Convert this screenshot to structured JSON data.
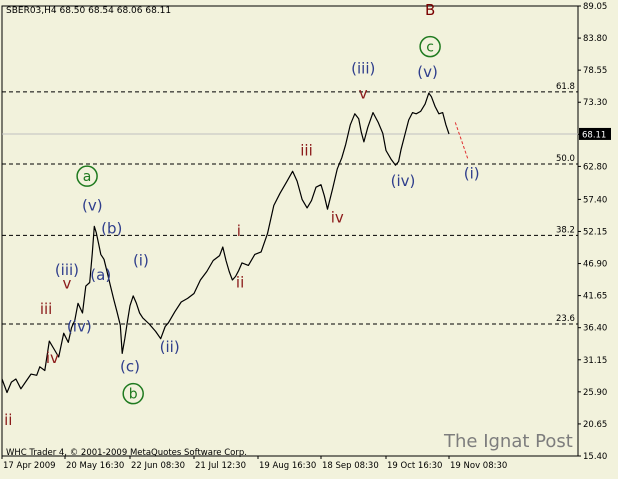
{
  "header": {
    "symbol_info": "SBER03,H4  68.50 68.54 68.06 68.11"
  },
  "footer": {
    "copyright": "WHC Trader 4, © 2001-2009 MetaQuotes Software Corp.",
    "watermark": "The Ignat Post"
  },
  "colors": {
    "background": "#f2f2dc",
    "price_line": "#000000",
    "wave_red": "#8b1a1a",
    "wave_blue": "#2f3e8c",
    "circle_green": "#1f7a1f",
    "projection": "#e03030",
    "current_price_line": "#c0c0c0"
  },
  "chart_data": {
    "type": "line",
    "title": "SBER03,H4",
    "ylim": [
      15.4,
      89.05
    ],
    "y_ticks": [
      "89.05",
      "83.80",
      "78.55",
      "73.30",
      "68.05",
      "62.80",
      "57.40",
      "52.15",
      "46.90",
      "41.65",
      "36.40",
      "31.15",
      "25.90",
      "20.65",
      "15.40"
    ],
    "x_ticks": [
      "17 Apr 2009",
      "20 May 16:30",
      "22 Jun 08:30",
      "21 Jul 12:30",
      "19 Aug 16:30",
      "18 Sep 08:30",
      "19 Oct 16:30",
      "19 Nov 08:30"
    ],
    "current_price": "68.11",
    "fib_levels": [
      {
        "label": "61.8",
        "value": 75.0
      },
      {
        "label": "50.0",
        "value": 63.2
      },
      {
        "label": "38.2",
        "value": 51.5
      },
      {
        "label": "23.6",
        "value": 37.0
      }
    ],
    "price_points": [
      [
        0.0,
        28.0
      ],
      [
        0.08,
        25.8
      ],
      [
        0.15,
        27.5
      ],
      [
        0.22,
        28.0
      ],
      [
        0.3,
        26.4
      ],
      [
        0.38,
        27.6
      ],
      [
        0.46,
        28.8
      ],
      [
        0.55,
        28.6
      ],
      [
        0.6,
        30.0
      ],
      [
        0.68,
        29.4
      ],
      [
        0.75,
        34.2
      ],
      [
        0.82,
        33.0
      ],
      [
        0.9,
        31.6
      ],
      [
        0.98,
        35.5
      ],
      [
        1.05,
        34.0
      ],
      [
        1.1,
        36.4
      ],
      [
        1.15,
        37.6
      ],
      [
        1.2,
        40.4
      ],
      [
        1.27,
        38.8
      ],
      [
        1.32,
        43.2
      ],
      [
        1.38,
        43.8
      ],
      [
        1.42,
        48.6
      ],
      [
        1.45,
        53.0
      ],
      [
        1.48,
        52.0
      ],
      [
        1.52,
        50.0
      ],
      [
        1.55,
        48.4
      ],
      [
        1.6,
        47.6
      ],
      [
        1.65,
        45.4
      ],
      [
        1.7,
        43.2
      ],
      [
        1.75,
        41.0
      ],
      [
        1.8,
        39.0
      ],
      [
        1.85,
        36.8
      ],
      [
        1.88,
        32.2
      ],
      [
        1.92,
        34.6
      ],
      [
        1.96,
        37.4
      ],
      [
        2.0,
        40.0
      ],
      [
        2.05,
        41.6
      ],
      [
        2.1,
        40.4
      ],
      [
        2.15,
        38.8
      ],
      [
        2.2,
        38.0
      ],
      [
        2.3,
        37.0
      ],
      [
        2.4,
        35.8
      ],
      [
        2.48,
        34.6
      ],
      [
        2.55,
        36.6
      ],
      [
        2.6,
        37.2
      ],
      [
        2.7,
        39.0
      ],
      [
        2.8,
        40.6
      ],
      [
        2.9,
        41.2
      ],
      [
        3.0,
        42.0
      ],
      [
        3.1,
        44.2
      ],
      [
        3.2,
        45.6
      ],
      [
        3.3,
        47.4
      ],
      [
        3.4,
        48.2
      ],
      [
        3.45,
        49.6
      ],
      [
        3.5,
        47.4
      ],
      [
        3.55,
        45.6
      ],
      [
        3.6,
        44.2
      ],
      [
        3.65,
        44.8
      ],
      [
        3.7,
        45.8
      ],
      [
        3.75,
        47.0
      ],
      [
        3.85,
        46.6
      ],
      [
        3.95,
        48.4
      ],
      [
        4.05,
        48.8
      ],
      [
        4.15,
        51.8
      ],
      [
        4.25,
        56.4
      ],
      [
        4.35,
        58.4
      ],
      [
        4.45,
        60.2
      ],
      [
        4.55,
        62.0
      ],
      [
        4.62,
        60.4
      ],
      [
        4.7,
        57.4
      ],
      [
        4.78,
        56.0
      ],
      [
        4.85,
        57.2
      ],
      [
        4.92,
        59.4
      ],
      [
        5.0,
        59.8
      ],
      [
        5.05,
        58.0
      ],
      [
        5.1,
        55.8
      ],
      [
        5.18,
        59.2
      ],
      [
        5.25,
        62.4
      ],
      [
        5.32,
        64.2
      ],
      [
        5.38,
        66.4
      ],
      [
        5.45,
        69.6
      ],
      [
        5.52,
        71.4
      ],
      [
        5.58,
        70.6
      ],
      [
        5.62,
        68.4
      ],
      [
        5.66,
        66.8
      ],
      [
        5.72,
        69.2
      ],
      [
        5.8,
        71.6
      ],
      [
        5.88,
        70.0
      ],
      [
        5.95,
        68.2
      ],
      [
        6.0,
        65.4
      ],
      [
        6.08,
        64.0
      ],
      [
        6.15,
        63.0
      ],
      [
        6.2,
        63.6
      ],
      [
        6.24,
        65.6
      ],
      [
        6.3,
        68.0
      ],
      [
        6.36,
        70.4
      ],
      [
        6.42,
        71.6
      ],
      [
        6.48,
        71.4
      ],
      [
        6.55,
        71.8
      ],
      [
        6.62,
        73.0
      ],
      [
        6.68,
        74.8
      ],
      [
        6.72,
        74.2
      ],
      [
        6.78,
        72.6
      ],
      [
        6.84,
        71.4
      ],
      [
        6.9,
        71.6
      ],
      [
        6.95,
        69.6
      ],
      [
        7.0,
        68.1
      ]
    ],
    "projection": [
      [
        7.1,
        70.0
      ],
      [
        7.3,
        64.0
      ]
    ],
    "wave_labels": [
      {
        "text": "ii",
        "x": 0.1,
        "y": 20.5,
        "color": "red"
      },
      {
        "text": "iii",
        "x": 0.7,
        "y": 38.6,
        "color": "red"
      },
      {
        "text": "iv",
        "x": 0.8,
        "y": 30.6,
        "color": "red"
      },
      {
        "text": "v",
        "x": 1.03,
        "y": 42.8,
        "color": "red"
      },
      {
        "text": "(iii)",
        "x": 1.03,
        "y": 45.0,
        "color": "blue"
      },
      {
        "text": "(iv)",
        "x": 1.22,
        "y": 35.8,
        "color": "blue"
      },
      {
        "text": "(v)",
        "x": 1.42,
        "y": 55.6,
        "color": "blue"
      },
      {
        "text": "(b)",
        "x": 1.72,
        "y": 51.8,
        "color": "blue"
      },
      {
        "text": "(a)",
        "x": 1.55,
        "y": 44.2,
        "color": "blue"
      },
      {
        "text": "(i)",
        "x": 2.17,
        "y": 46.6,
        "color": "blue"
      },
      {
        "text": "(c)",
        "x": 2.0,
        "y": 29.2,
        "color": "blue"
      },
      {
        "text": "(ii)",
        "x": 2.62,
        "y": 32.4,
        "color": "blue"
      },
      {
        "text": "i",
        "x": 3.7,
        "y": 51.4,
        "color": "red"
      },
      {
        "text": "ii",
        "x": 3.72,
        "y": 43.0,
        "color": "red"
      },
      {
        "text": "iii",
        "x": 4.77,
        "y": 64.6,
        "color": "red"
      },
      {
        "text": "iv",
        "x": 5.25,
        "y": 53.6,
        "color": "red"
      },
      {
        "text": "(iii)",
        "x": 5.65,
        "y": 78.0,
        "color": "blue"
      },
      {
        "text": "v",
        "x": 5.65,
        "y": 73.9,
        "color": "red"
      },
      {
        "text": "(iv)",
        "x": 6.27,
        "y": 59.6,
        "color": "blue"
      },
      {
        "text": "(v)",
        "x": 6.66,
        "y": 77.4,
        "color": "blue"
      },
      {
        "text": "(i)",
        "x": 7.36,
        "y": 60.8,
        "color": "blue"
      },
      {
        "text": "B",
        "x": 6.7,
        "y": 87.6,
        "color": "darkred"
      }
    ],
    "circle_labels": [
      {
        "text": "a",
        "x": 1.34,
        "y": 61.2
      },
      {
        "text": "b",
        "x": 2.05,
        "y": 25.6
      },
      {
        "text": "c",
        "x": 6.7,
        "y": 82.4
      }
    ]
  }
}
